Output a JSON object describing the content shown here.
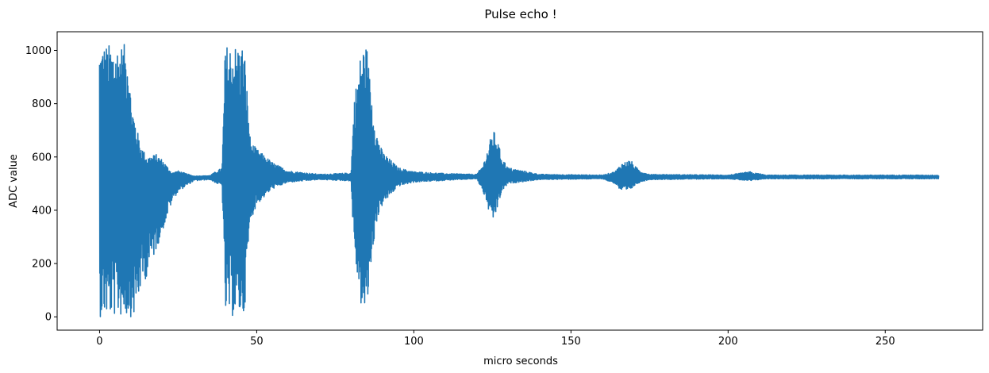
{
  "chart_data": {
    "type": "line",
    "title": "Pulse echo !",
    "xlabel": "micro seconds",
    "ylabel": "ADC value",
    "xlim": [
      -13.5,
      281
    ],
    "ylim": [
      -50,
      1070
    ],
    "xticks": [
      0,
      50,
      100,
      150,
      200,
      250
    ],
    "yticks": [
      0,
      200,
      400,
      600,
      800,
      1000
    ],
    "grid": false,
    "legend": "none",
    "baseline": 525,
    "x_range": [
      0,
      267
    ],
    "series": [
      {
        "color": "#1f77b4",
        "envelope": {
          "x": [
            0,
            1,
            4,
            7,
            9,
            10,
            11,
            12,
            13,
            15,
            18,
            20,
            23,
            25,
            30,
            35,
            39,
            40,
            42,
            45,
            46,
            48,
            50,
            55,
            60,
            70,
            80,
            81,
            83,
            84,
            85,
            86,
            88,
            90,
            95,
            100,
            110,
            120,
            122,
            124,
            125,
            126,
            128,
            130,
            140,
            160,
            164,
            166,
            168,
            169,
            170,
            172,
            175,
            200,
            207,
            208,
            210,
            212,
            267
          ],
          "max": [
            1023,
            1023,
            1023,
            1023,
            1023,
            820,
            760,
            700,
            650,
            600,
            610,
            590,
            540,
            548,
            528,
            530,
            560,
            1023,
            1023,
            1023,
            1023,
            660,
            630,
            580,
            548,
            535,
            540,
            820,
            980,
            1023,
            1023,
            900,
            700,
            620,
            560,
            545,
            538,
            535,
            570,
            650,
            700,
            690,
            600,
            560,
            535,
            532,
            545,
            575,
            585,
            590,
            570,
            548,
            535,
            532,
            545,
            540,
            538,
            532,
            532
          ],
          "min": [
            0,
            0,
            0,
            0,
            0,
            0,
            0,
            30,
            100,
            150,
            250,
            320,
            430,
            470,
            510,
            515,
            490,
            0,
            0,
            0,
            0,
            360,
            420,
            480,
            505,
            515,
            510,
            240,
            50,
            0,
            0,
            150,
            350,
            420,
            490,
            505,
            512,
            518,
            470,
            390,
            350,
            380,
            470,
            500,
            515,
            518,
            500,
            470,
            470,
            475,
            490,
            505,
            515,
            518,
            510,
            512,
            515,
            518,
            518
          ]
        }
      }
    ]
  }
}
